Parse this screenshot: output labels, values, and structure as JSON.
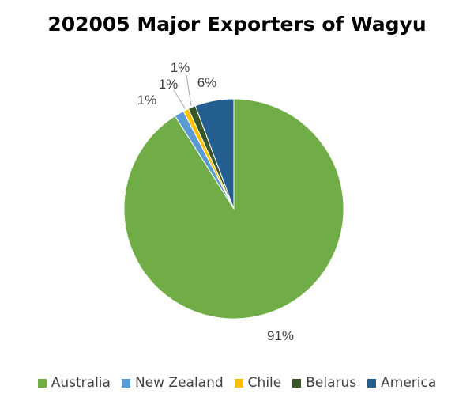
{
  "chart_data": {
    "type": "pie",
    "title": "202005 Major Exporters of Wagyu",
    "categories": [
      "Australia",
      "New Zealand",
      "Chile",
      "Belarus",
      "America"
    ],
    "values": [
      91,
      1,
      1,
      1,
      6
    ],
    "labels": [
      "91%",
      "1%",
      "1%",
      "1%",
      "6%"
    ],
    "colors": [
      "#70ad47",
      "#5b9bd5",
      "#ffc000",
      "#375623",
      "#255e91"
    ],
    "start_angle": "12 o'clock",
    "direction": "clockwise",
    "legend_position": "bottom"
  }
}
